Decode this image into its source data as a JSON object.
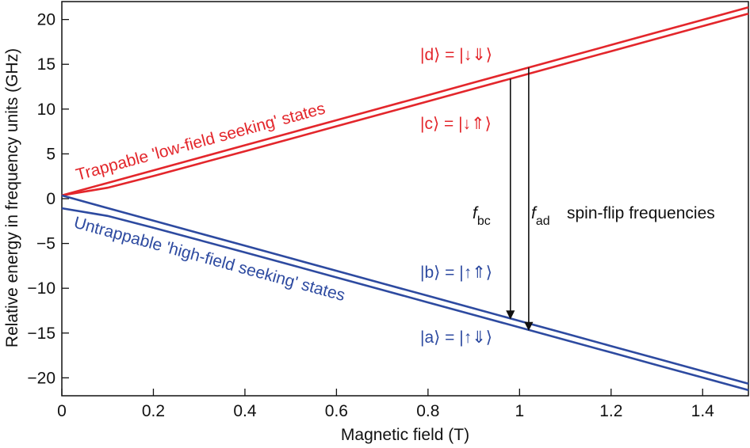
{
  "chart_data": {
    "type": "line",
    "x_label": "Magnetic field (T)",
    "y_label": "Relative energy in frequency units (GHz)",
    "x": [
      0,
      0.1,
      0.2,
      0.3,
      0.4,
      0.5,
      0.6,
      0.7,
      0.8,
      0.9,
      1.0,
      1.1,
      1.2,
      1.3,
      1.4,
      1.5
    ],
    "series": [
      {
        "name": "|d⟩ = |↓⇓⟩",
        "color": "#e3262b",
        "values": [
          0.36,
          1.76,
          3.16,
          4.56,
          5.96,
          7.36,
          8.76,
          10.16,
          11.56,
          12.96,
          14.36,
          15.76,
          17.16,
          18.56,
          19.96,
          21.36
        ]
      },
      {
        "name": "|c⟩ = |↓⇑⟩",
        "color": "#e3262b",
        "values": [
          0.36,
          1.22,
          2.53,
          3.91,
          5.29,
          6.68,
          8.08,
          9.47,
          10.87,
          12.27,
          13.66,
          15.06,
          16.46,
          17.86,
          19.26,
          20.66
        ]
      },
      {
        "name": "|b⟩ = |↑⇑⟩",
        "color": "#2d4aa0",
        "values": [
          0.36,
          -1.05,
          -2.45,
          -3.85,
          -5.25,
          -6.65,
          -8.05,
          -9.45,
          -10.85,
          -12.25,
          -13.65,
          -15.05,
          -16.45,
          -17.85,
          -19.25,
          -20.65
        ]
      },
      {
        "name": "|a⟩ = |↑⇓⟩",
        "color": "#2d4aa0",
        "values": [
          -1.07,
          -1.93,
          -3.24,
          -4.62,
          -6.0,
          -7.39,
          -8.79,
          -10.18,
          -11.58,
          -12.98,
          -14.37,
          -15.77,
          -17.17,
          -18.57,
          -19.97,
          -21.37
        ]
      }
    ],
    "annotations": [
      "Trappable 'low-field seeking' states",
      "Untrappable 'high-field seeking' states",
      "spin-flip frequencies"
    ],
    "arrows": [
      {
        "label": "f",
        "sub": "bc",
        "x": 0.98,
        "from": 13.38,
        "to": -13.37
      },
      {
        "label": "f",
        "sub": "ad",
        "x": 1.02,
        "from": 14.64,
        "to": -14.65
      }
    ],
    "xlim": [
      0,
      1.5
    ],
    "ylim": [
      -22,
      22
    ],
    "xticks": [
      0,
      0.2,
      0.4,
      0.6,
      0.8,
      1,
      1.2,
      1.4
    ],
    "yticks": [
      {
        "value": -20,
        "label": "−20"
      },
      {
        "value": -15,
        "label": "−15"
      },
      {
        "value": -10,
        "label": "−10"
      },
      {
        "value": -5,
        "label": "−5"
      },
      0,
      5,
      10,
      15,
      20
    ]
  }
}
